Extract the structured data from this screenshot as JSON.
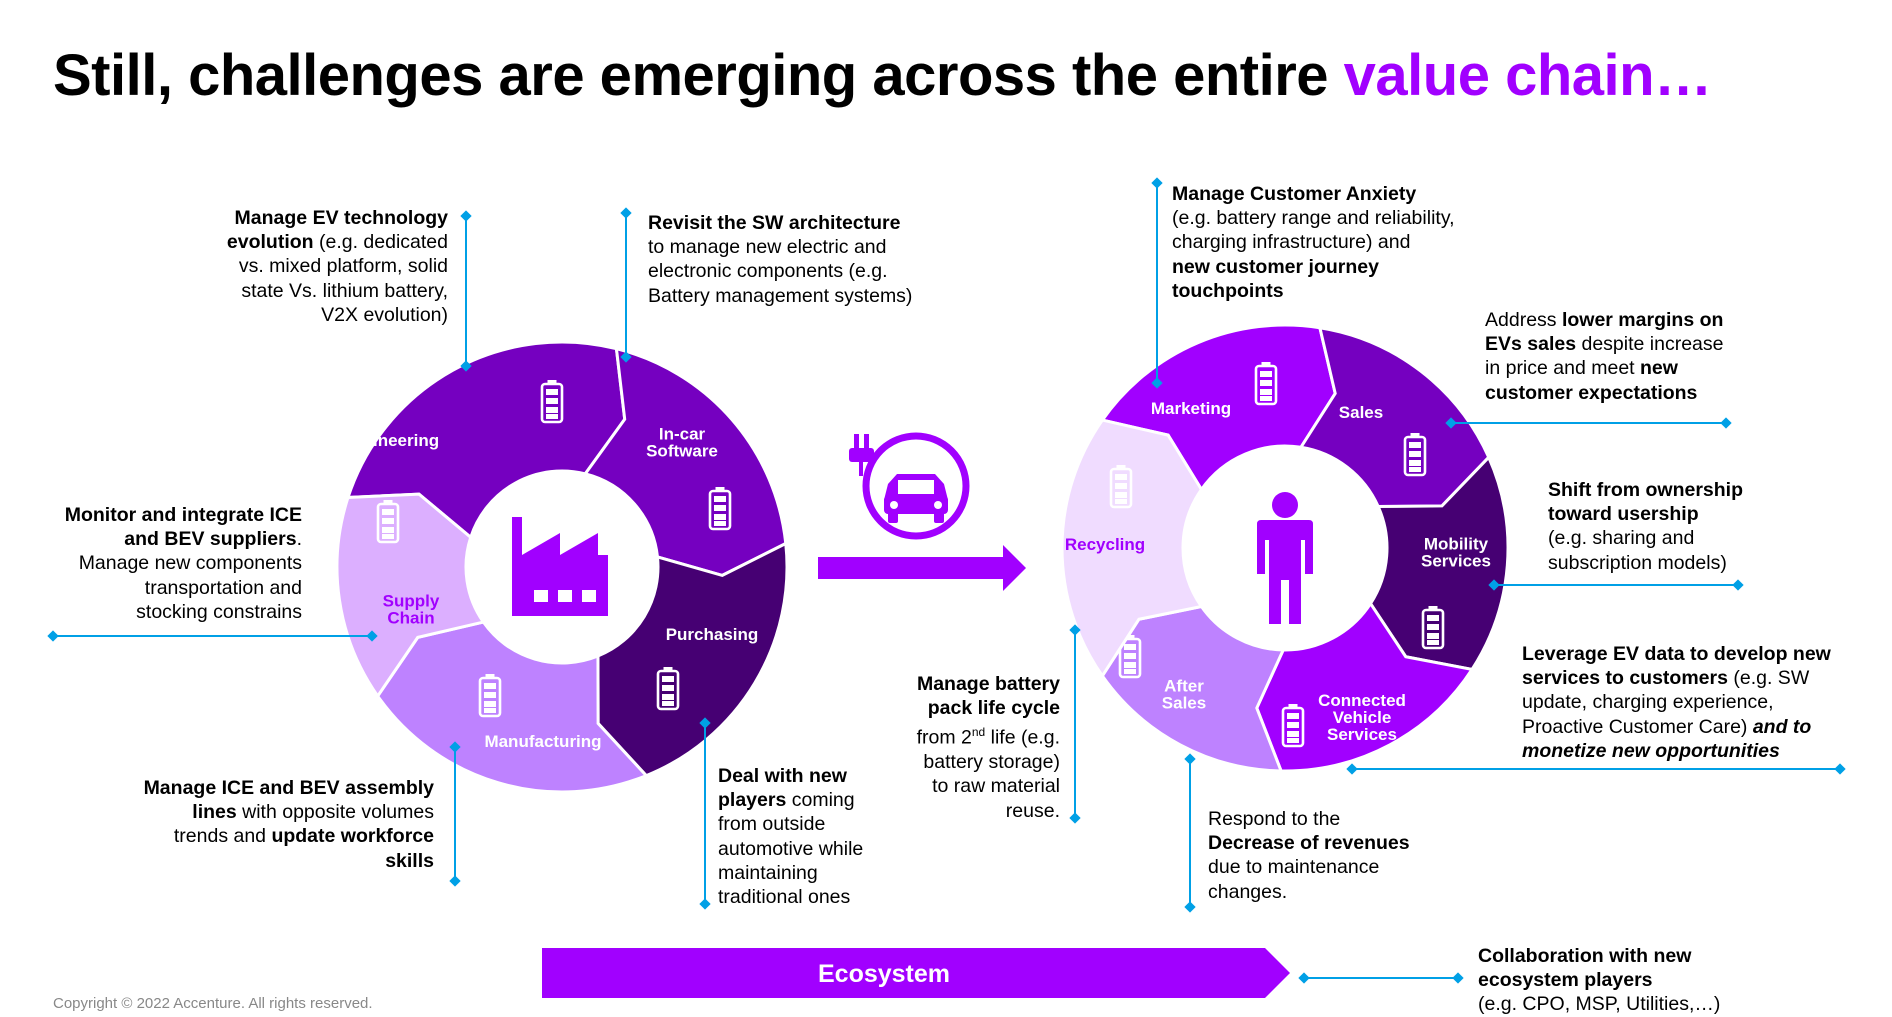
{
  "title": {
    "text": "Still, challenges are emerging across the entire ",
    "accent": "value chain…",
    "accent_color": "#a100ff"
  },
  "colors": {
    "dark": "#460073",
    "primary": "#7500c0",
    "bright": "#a100ff",
    "medium": "#be82ff",
    "light": "#dcafff",
    "pale": "#f0dcff",
    "connector": "#00a0e6"
  },
  "left_cycle": {
    "center_icon": "factory-icon",
    "segments": [
      "Engineering",
      "In-car Software",
      "Purchasing",
      "Manufacturing",
      "Supply Chain"
    ]
  },
  "right_cycle": {
    "center_icon": "person-icon",
    "segments": [
      "Marketing",
      "Sales",
      "Mobility Services",
      "Connected Vehicle Services",
      "After Sales",
      "Recycling"
    ]
  },
  "transition_icon": "ev-plug-car-icon",
  "ecosystem_label": "Ecosystem",
  "notes": {
    "engineering": {
      "b1": "Manage EV technology",
      "b2": "evolution",
      "t1": " (e.g. dedicated",
      "t2": "vs. mixed platform, solid",
      "t3": "state Vs. lithium battery,",
      "t4": "V2X evolution)"
    },
    "software": {
      "b1": "Revisit the SW architecture",
      "t1": " to manage new electric and",
      "t2": "electronic components (e.g.",
      "t3": "Battery management systems)"
    },
    "supply": {
      "b1": "Monitor and integrate ICE",
      "b2": "and BEV suppliers",
      "t0": ".",
      "t1": "Manage new components",
      "t2": "transportation and",
      "t3": "stocking constrains"
    },
    "manufacturing": {
      "b1": "Manage ICE and BEV assembly",
      "b2": "lines",
      "t1": " with opposite volumes",
      "t2": "trends and ",
      "b3": "update workforce",
      "b4": "skills"
    },
    "purchasing": {
      "b1": "Deal with new",
      "b2": "players",
      "t1": " coming",
      "t2": "from outside",
      "t3": "automotive while",
      "t4": "maintaining",
      "t5": "traditional ones"
    },
    "recycling": {
      "b1": "Manage battery",
      "b2": "pack life cycle",
      "t1": "from 2",
      "sup": "nd",
      "t2": " life (e.g.",
      "t3": "battery storage)",
      "t4": "to raw material",
      "t5": "reuse."
    },
    "marketing": {
      "b1": "Manage Customer Anxiety",
      "t1": "(e.g. battery range and reliability,",
      "t2": "charging infrastructure) and",
      "b2": "new customer journey",
      "b3": "touchpoints"
    },
    "sales": {
      "t1": "Address ",
      "b1": "lower margins on",
      "b2": "EVs sales",
      "t2": " despite increase",
      "t3": "in price and meet ",
      "b3": "new",
      "b4": "customer expectations"
    },
    "mobility": {
      "b1": "Shift from ownership",
      "b2": "toward usership",
      "t1": "(e.g. sharing and",
      "t2": "subscription models)"
    },
    "connected": {
      "b1": "Leverage EV data to develop new",
      "b2": "services  to customers",
      "t1": " (e.g. SW",
      "t2": "update, charging experience,",
      "t3": "Proactive Customer Care) ",
      "bi1": "and to",
      "bi2": "monetize new opportunities"
    },
    "aftersales": {
      "t1": "Respond to the",
      "b1": "Decrease of revenues",
      "t2": "due to maintenance",
      "t3": "changes."
    },
    "ecosystem": {
      "b1": "Collaboration with new",
      "b2": "ecosystem players",
      "t1": "(e.g. CPO, MSP, Utilities,…)"
    }
  },
  "footer": {
    "copyright": "Copyright © 2022 Accenture. All rights reserved."
  }
}
